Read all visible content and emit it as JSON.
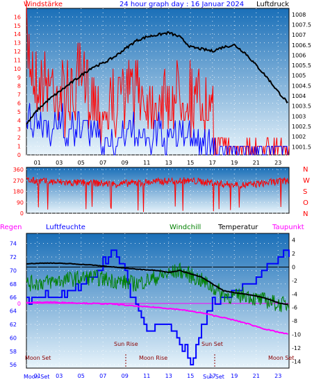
{
  "chart_data": [
    {
      "type": "line",
      "title": "24 hour graph day : 16 Januar 2024",
      "left_label": "Windstärke",
      "right_label": "Luftdruck",
      "x_ticks": [
        "01",
        "03",
        "05",
        "07",
        "09",
        "11",
        "13",
        "15",
        "17",
        "19",
        "21",
        "23"
      ],
      "left_ticks": [
        0,
        1,
        2,
        3,
        4,
        5,
        6,
        7,
        8,
        9,
        10,
        11,
        12,
        13,
        14,
        15,
        16
      ],
      "right_ticks": [
        "1001.5",
        "1002",
        "1002.5",
        "1003",
        "1003.5",
        "1004",
        "1004.5",
        "1005",
        "1005.5",
        "1006",
        "1006.5",
        "1007",
        "1007.5",
        "1008"
      ],
      "left_range": [
        0,
        17
      ],
      "right_range": [
        1001.1,
        1008.3
      ],
      "series": [
        {
          "name": "Luftdruck",
          "axis": "right",
          "color": "#000000",
          "x": [
            0,
            1,
            2,
            3,
            4,
            5,
            6,
            7,
            8,
            9,
            10,
            11,
            12,
            13,
            14,
            15,
            16,
            17,
            18,
            19,
            20,
            21,
            22,
            23,
            24
          ],
          "values": [
            1002.6,
            1003.3,
            1003.8,
            1004.2,
            1004.6,
            1005.0,
            1005.4,
            1005.6,
            1005.9,
            1006.3,
            1006.7,
            1006.9,
            1007.0,
            1007.1,
            1006.9,
            1006.4,
            1006.3,
            1006.2,
            1006.4,
            1006.5,
            1006.1,
            1005.5,
            1004.9,
            1004.2,
            1003.6
          ]
        },
        {
          "name": "Wind gust",
          "axis": "left",
          "color": "#ff0000",
          "x": [
            0,
            1,
            2,
            3,
            4,
            5,
            6,
            7,
            8,
            9,
            10,
            11,
            12,
            13,
            14,
            15,
            16,
            17,
            18,
            19,
            20,
            21,
            22,
            23,
            24
          ],
          "values": [
            16,
            11,
            12,
            10,
            10,
            11,
            10,
            8,
            9,
            10,
            11,
            9,
            10,
            9,
            11,
            10,
            9,
            7,
            2,
            2,
            2,
            2,
            2,
            2,
            2
          ]
        },
        {
          "name": "Wind mean",
          "axis": "left",
          "color": "#0000ff",
          "x": [
            0,
            1,
            2,
            3,
            4,
            5,
            6,
            7,
            8,
            9,
            10,
            11,
            12,
            13,
            14,
            15,
            16,
            17,
            18,
            19,
            20,
            21,
            22,
            23,
            24
          ],
          "values": [
            5,
            5,
            5,
            5,
            4,
            5,
            4,
            3,
            3,
            4,
            4,
            3,
            4,
            3,
            4,
            4,
            3,
            3,
            0,
            0,
            0,
            0,
            0,
            0,
            0
          ]
        }
      ]
    },
    {
      "type": "scatter",
      "title": "",
      "left_ticks": [
        0,
        90,
        180,
        270,
        360
      ],
      "right_letters": [
        "N",
        "W",
        "S",
        "O",
        "N"
      ],
      "y_range": [
        0,
        360
      ],
      "series": [
        {
          "name": "Windrichtung",
          "color": "#ff0000",
          "x": [
            0,
            2,
            4,
            6,
            8,
            10,
            12,
            14,
            16,
            18,
            20,
            22,
            24
          ],
          "values": [
            270,
            260,
            250,
            250,
            240,
            250,
            260,
            270,
            260,
            240,
            230,
            250,
            270
          ]
        }
      ]
    },
    {
      "type": "line",
      "title": "",
      "legend": [
        "Regen",
        "Luftfeuchte",
        "Windchill",
        "Temperatur",
        "Taupunkt"
      ],
      "legend_colors": [
        "#ff00ff",
        "#0000ff",
        "#008000",
        "#000000",
        "#ff00ff"
      ],
      "left_ticks": [
        56,
        58,
        60,
        62,
        64,
        66,
        68,
        70,
        72,
        74
      ],
      "right_ticks": [
        4,
        2,
        0,
        -2,
        -4,
        -6,
        -8,
        -10,
        -12,
        -14
      ],
      "left_range": [
        55.5,
        75.5
      ],
      "right_range": [
        -15,
        5
      ],
      "rain_label": "0",
      "x_ticks": [
        "01",
        "03",
        "05",
        "07",
        "09",
        "11",
        "13",
        "15",
        "17",
        "19",
        "21",
        "23"
      ],
      "annotations": [
        "Moon Set",
        "Sun Rise",
        "Moon Rise",
        "Sun Set",
        "Moon Set"
      ],
      "bottom_labels": [
        "Moon Set",
        "Sun Rise",
        "Moon Rise",
        "Sun Set",
        "Moon Set"
      ],
      "series": [
        {
          "name": "Luftfeuchte",
          "axis": "left",
          "color": "#0000ff",
          "x": [
            0,
            2,
            4,
            6,
            7,
            8,
            8.5,
            9,
            10,
            11,
            12,
            13,
            14,
            14.5,
            15,
            15.5,
            16,
            17,
            18,
            19,
            20,
            21,
            22,
            23,
            24
          ],
          "values": [
            66,
            66,
            67,
            69,
            71,
            73,
            72,
            70,
            64,
            61,
            62,
            62,
            59,
            58,
            57,
            59,
            62,
            65,
            66,
            67,
            68,
            69,
            71,
            72,
            73
          ]
        },
        {
          "name": "Temperatur",
          "axis": "right",
          "color": "#000000",
          "x": [
            0,
            2,
            4,
            6,
            8,
            10,
            12,
            13,
            14,
            16,
            17,
            18,
            19,
            20,
            21,
            22,
            23,
            24
          ],
          "values": [
            0.5,
            0.6,
            0.5,
            0.3,
            0.0,
            -0.3,
            -0.5,
            -0.8,
            -0.5,
            -1.5,
            -2.5,
            -3.5,
            -3.8,
            -4.0,
            -4.3,
            -4.7,
            -5.3,
            -5.6
          ]
        },
        {
          "name": "Windchill",
          "axis": "right",
          "color": "#008000",
          "x": [
            0,
            2,
            4,
            6,
            8,
            10,
            12,
            14,
            16,
            17,
            18,
            19,
            20,
            21,
            22,
            23,
            24
          ],
          "values": [
            -2.5,
            -2.2,
            -1.8,
            -1.5,
            -2.0,
            -2.5,
            -1.5,
            -0.5,
            -2.0,
            -3.0,
            -4.0,
            -4.5,
            -4.0,
            -4.8,
            -5.0,
            -5.5,
            -5.6
          ]
        },
        {
          "name": "Taupunkt",
          "axis": "right",
          "color": "#ff00ff",
          "x": [
            0,
            2,
            4,
            6,
            8,
            10,
            12,
            14,
            16,
            18,
            20,
            22,
            24
          ],
          "values": [
            -5.3,
            -5.2,
            -5.3,
            -5.4,
            -5.5,
            -5.8,
            -6.0,
            -6.3,
            -6.8,
            -7.5,
            -8.3,
            -9.3,
            -10.0
          ]
        }
      ]
    }
  ]
}
